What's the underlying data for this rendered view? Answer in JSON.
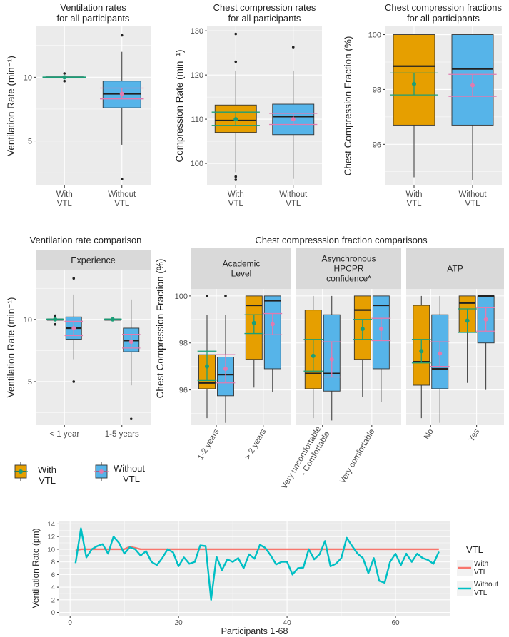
{
  "figure": {
    "colors": {
      "with": "#E69F00",
      "without": "#56B4E9",
      "mean_with": "#1B9E77",
      "mean_without": "#E07BB0",
      "panel_bg": "#EBEBEB",
      "grid": "#FFFFFF",
      "strip_bg": "#D9D9D9",
      "line_with": "#F8766D",
      "line_without": "#00BFC4"
    },
    "legend": {
      "with_label_1": "With",
      "with_label_2": "VTL",
      "without_label_1": "Without",
      "without_label_2": "VTL"
    }
  },
  "chart_data": [
    {
      "id": "vent_all",
      "type": "boxplot",
      "title_1": "Ventilation rates",
      "title_2": "for all participants",
      "ylabel": "Ventilation Rate (min⁻¹)",
      "ylim": [
        1.5,
        14
      ],
      "yticks": [
        5,
        10
      ],
      "categories": [
        {
          "line1": "With",
          "line2": "VTL"
        },
        {
          "line1": "Without",
          "line2": "VTL"
        }
      ],
      "boxes": [
        {
          "cat": 0,
          "group": "with",
          "q1": 10,
          "median": 10,
          "q3": 10,
          "whisk_lo": 10,
          "whisk_hi": 10,
          "outliers": [
            9.7,
            10.3
          ],
          "mean": 10,
          "ci": [
            9.98,
            10.02
          ]
        },
        {
          "cat": 1,
          "group": "without",
          "q1": 7.6,
          "median": 8.7,
          "q3": 9.7,
          "whisk_lo": 4.7,
          "whisk_hi": 12,
          "outliers": [
            2,
            13.3
          ],
          "mean": 8.7,
          "ci": [
            8.3,
            9.15
          ]
        }
      ]
    },
    {
      "id": "cc_rate",
      "type": "boxplot",
      "title_1": "Chest compression rates",
      "title_2": "for all participants",
      "ylabel": "Compression Rate (min⁻¹)",
      "ylim": [
        95,
        131
      ],
      "yticks": [
        100,
        110,
        120,
        130
      ],
      "categories": [
        {
          "line1": "With",
          "line2": "VTL"
        },
        {
          "line1": "Without",
          "line2": "VTL"
        }
      ],
      "boxes": [
        {
          "cat": 0,
          "group": "with",
          "q1": 107,
          "median": 109.7,
          "q3": 113.2,
          "whisk_lo": 98,
          "whisk_hi": 121,
          "outliers": [
            96.3,
            97,
            123,
            129.3
          ],
          "mean": 110,
          "ci": [
            108.6,
            111.6
          ]
        },
        {
          "cat": 1,
          "group": "without",
          "q1": 106.5,
          "median": 110.6,
          "q3": 113.4,
          "whisk_lo": 96.5,
          "whisk_hi": 121,
          "outliers": [
            126.3
          ],
          "mean": 110,
          "ci": [
            108.8,
            111.3
          ]
        }
      ]
    },
    {
      "id": "ccf_all",
      "type": "boxplot",
      "title_1": "Chest compression fractions",
      "title_2": "for all participants",
      "ylabel": "Chest Compression Fraction (%)",
      "ylim": [
        94.5,
        100.3
      ],
      "yticks": [
        96,
        98,
        100
      ],
      "categories": [
        {
          "line1": "With",
          "line2": "VTL"
        },
        {
          "line1": "Without",
          "line2": "VTL"
        }
      ],
      "boxes": [
        {
          "cat": 0,
          "group": "with",
          "q1": 96.7,
          "median": 98.85,
          "q3": 100,
          "whisk_lo": 94.8,
          "whisk_hi": 100,
          "outliers": [],
          "mean": 98.2,
          "ci": [
            97.8,
            98.6
          ]
        },
        {
          "cat": 1,
          "group": "without",
          "q1": 96.7,
          "median": 98.75,
          "q3": 100,
          "whisk_lo": 94.7,
          "whisk_hi": 100,
          "outliers": [],
          "mean": 98.15,
          "ci": [
            97.75,
            98.55
          ]
        }
      ]
    },
    {
      "id": "vent_exp",
      "type": "boxplot",
      "title_1": "Ventilation rate comparison",
      "strip": "Experience",
      "ylabel": "Ventilation Rate (min⁻¹)",
      "ylim": [
        1.5,
        14
      ],
      "yticks": [
        5,
        10
      ],
      "categories": [
        {
          "line1": "< 1 year"
        },
        {
          "line1": "1-5 years"
        }
      ],
      "boxes": [
        {
          "cat": 0,
          "group": "with",
          "q1": 10,
          "median": 10,
          "q3": 10,
          "whisk_lo": 10,
          "whisk_hi": 10,
          "outliers": [
            9.6,
            10.3
          ],
          "mean": 10,
          "ci": [
            9.97,
            10.03
          ]
        },
        {
          "cat": 0,
          "group": "without",
          "q1": 8.4,
          "median": 9.3,
          "q3": 10.2,
          "whisk_lo": 6.8,
          "whisk_hi": 12,
          "outliers": [
            5,
            13.3
          ],
          "mean": 9.3,
          "ci": [
            8.7,
            9.85
          ]
        },
        {
          "cat": 1,
          "group": "with",
          "q1": 10,
          "median": 10,
          "q3": 10,
          "whisk_lo": 10,
          "whisk_hi": 10,
          "outliers": [],
          "mean": 10,
          "ci": [
            9.97,
            10.03
          ]
        },
        {
          "cat": 1,
          "group": "without",
          "q1": 7.4,
          "median": 8.3,
          "q3": 9.3,
          "whisk_lo": 4.7,
          "whisk_hi": 11.6,
          "outliers": [
            2
          ],
          "mean": 8.2,
          "ci": [
            7.7,
            8.8
          ]
        }
      ]
    },
    {
      "id": "ccf_facets",
      "type": "boxplot_facets",
      "title_1": "Chest compresssion fraction comparisons",
      "ylabel": "Chest Compression Fraction (%)",
      "ylim": [
        94.5,
        100.3
      ],
      "yticks": [
        96,
        98,
        100
      ],
      "facets": [
        {
          "strip": [
            "Academic",
            "Level"
          ],
          "categories": [
            "1-2 years",
            "> 2 years"
          ],
          "boxes": [
            {
              "cat": 0,
              "group": "with",
              "q1": 96.05,
              "median": 96.3,
              "q3": 97.5,
              "whisk_lo": 94.8,
              "whisk_hi": 99.2,
              "outliers": [
                100
              ],
              "mean": 97.0,
              "ci": [
                96.4,
                97.65
              ]
            },
            {
              "cat": 0,
              "group": "without",
              "q1": 95.75,
              "median": 96.65,
              "q3": 97.4,
              "whisk_lo": 94.6,
              "whisk_hi": 99.2,
              "outliers": [
                100
              ],
              "mean": 96.9,
              "ci": [
                96.3,
                97.5
              ]
            },
            {
              "cat": 1,
              "group": "with",
              "q1": 97.3,
              "median": 99.6,
              "q3": 100,
              "whisk_lo": 96.1,
              "whisk_hi": 100,
              "outliers": [],
              "mean": 98.85,
              "ci": [
                98.4,
                99.2
              ]
            },
            {
              "cat": 1,
              "group": "without",
              "q1": 96.9,
              "median": 99.8,
              "q3": 100,
              "whisk_lo": 95.9,
              "whisk_hi": 100,
              "outliers": [],
              "mean": 98.8,
              "ci": [
                98.35,
                99.25
              ]
            }
          ]
        },
        {
          "strip": [
            "Asynchronous",
            "HPCPR",
            "confidence*"
          ],
          "categories": [
            "Very  uncomfortable\n- Comfortable",
            "Very comfortable"
          ],
          "boxes": [
            {
              "cat": 0,
              "group": "with",
              "q1": 96.05,
              "median": 96.7,
              "q3": 99.4,
              "whisk_lo": 94.8,
              "whisk_hi": 100,
              "outliers": [],
              "mean": 97.45,
              "ci": [
                96.8,
                98.15
              ]
            },
            {
              "cat": 0,
              "group": "without",
              "q1": 95.95,
              "median": 96.7,
              "q3": 99.2,
              "whisk_lo": 94.7,
              "whisk_hi": 100,
              "outliers": [],
              "mean": 97.3,
              "ci": [
                96.55,
                98.05
              ]
            },
            {
              "cat": 1,
              "group": "with",
              "q1": 97.3,
              "median": 99.4,
              "q3": 100,
              "whisk_lo": 95.7,
              "whisk_hi": 100,
              "outliers": [],
              "mean": 98.6,
              "ci": [
                98.15,
                99.0
              ]
            },
            {
              "cat": 1,
              "group": "without",
              "q1": 96.9,
              "median": 99.6,
              "q3": 100,
              "whisk_lo": 95.5,
              "whisk_hi": 100,
              "outliers": [],
              "mean": 98.6,
              "ci": [
                98.1,
                99.05
              ]
            }
          ]
        },
        {
          "strip": [
            "ATP"
          ],
          "categories": [
            "No",
            "Yes"
          ],
          "boxes": [
            {
              "cat": 0,
              "group": "with",
              "q1": 96.2,
              "median": 97.2,
              "q3": 99.6,
              "whisk_lo": 94.8,
              "whisk_hi": 100,
              "outliers": [],
              "mean": 97.65,
              "ci": [
                97.15,
                98.15
              ]
            },
            {
              "cat": 0,
              "group": "without",
              "q1": 96.05,
              "median": 96.9,
              "q3": 99.2,
              "whisk_lo": 94.6,
              "whisk_hi": 100,
              "outliers": [],
              "mean": 97.55,
              "ci": [
                97.0,
                98.05
              ]
            },
            {
              "cat": 1,
              "group": "with",
              "q1": 98.45,
              "median": 99.7,
              "q3": 100,
              "whisk_lo": 96.3,
              "whisk_hi": 100,
              "outliers": [],
              "mean": 98.95,
              "ci": [
                98.45,
                99.45
              ]
            },
            {
              "cat": 1,
              "group": "without",
              "q1": 98.0,
              "median": 100,
              "q3": 100,
              "whisk_lo": 96.0,
              "whisk_hi": 100,
              "outliers": [],
              "mean": 99.0,
              "ci": [
                98.5,
                99.5
              ]
            }
          ]
        }
      ]
    },
    {
      "id": "vent_line",
      "type": "line",
      "xlabel": "Participants 1-68",
      "ylabel": "Ventilation Rate (pm)",
      "xlim": [
        -2,
        70
      ],
      "ylim": [
        -0.5,
        14.5
      ],
      "xticks": [
        0,
        20,
        40,
        60
      ],
      "yticks": [
        0,
        2,
        4,
        6,
        8,
        10,
        12,
        14
      ],
      "legend_title": "VTL",
      "series": [
        {
          "name": "With VTL",
          "label_1": "With",
          "label_2": "VTL",
          "group": "with",
          "x": [
            1,
            2,
            3,
            4,
            5,
            6,
            7,
            8,
            9,
            10,
            11,
            12,
            13,
            14,
            15,
            16,
            17,
            18,
            19,
            20,
            21,
            22,
            23,
            24,
            25,
            26,
            27,
            28,
            29,
            30,
            31,
            32,
            33,
            34,
            35,
            36,
            37,
            38,
            39,
            40,
            41,
            42,
            43,
            44,
            45,
            46,
            47,
            48,
            49,
            50,
            51,
            52,
            53,
            54,
            55,
            56,
            57,
            58,
            59,
            60,
            61,
            62,
            63,
            64,
            65,
            66,
            67,
            68
          ],
          "y": [
            9.8,
            10,
            10,
            10,
            10,
            10,
            10,
            10,
            10,
            10,
            10.4,
            10.2,
            10,
            10,
            10,
            10,
            10,
            10,
            10,
            10,
            10,
            10,
            10,
            10,
            10,
            10,
            10,
            10,
            10,
            10,
            10,
            10,
            10,
            10,
            10,
            10,
            10,
            10,
            10,
            10,
            10,
            10,
            10,
            10,
            10,
            10,
            10,
            10,
            10,
            10,
            10,
            10,
            10,
            10,
            10,
            10,
            10,
            10,
            10,
            10,
            10,
            10,
            10,
            10,
            10,
            10,
            10,
            10
          ]
        },
        {
          "name": "Without VTL",
          "label_1": "Without",
          "label_2": "VTL",
          "group": "without",
          "x": [
            1,
            2,
            3,
            4,
            5,
            6,
            7,
            8,
            9,
            10,
            11,
            12,
            13,
            14,
            15,
            16,
            17,
            18,
            19,
            20,
            21,
            22,
            23,
            24,
            25,
            26,
            27,
            28,
            29,
            30,
            31,
            32,
            33,
            34,
            35,
            36,
            37,
            38,
            39,
            40,
            41,
            42,
            43,
            44,
            45,
            46,
            47,
            48,
            49,
            50,
            51,
            52,
            53,
            54,
            55,
            56,
            57,
            58,
            59,
            60,
            61,
            62,
            63,
            64,
            65,
            66,
            67,
            68
          ],
          "y": [
            7.8,
            13.3,
            8.7,
            10,
            10.5,
            10.8,
            9.3,
            12,
            11,
            9.3,
            10.3,
            10,
            9,
            9.7,
            8,
            7.5,
            8.6,
            10,
            9.5,
            7.3,
            8.7,
            7.7,
            8,
            10.6,
            10.5,
            2,
            8.8,
            6.7,
            8.4,
            8,
            8.6,
            7,
            9.2,
            8.5,
            10.7,
            10.2,
            9,
            7.6,
            8,
            8,
            6,
            7,
            7.1,
            10,
            8.4,
            9.2,
            11.3,
            7.3,
            7.7,
            8.6,
            11.8,
            10.5,
            9.3,
            8.6,
            6.2,
            8.6,
            5,
            4.7,
            8,
            9.3,
            7.5,
            9.3,
            8,
            9.3,
            8.6,
            8.3,
            7.7,
            9.6
          ]
        }
      ]
    }
  ]
}
